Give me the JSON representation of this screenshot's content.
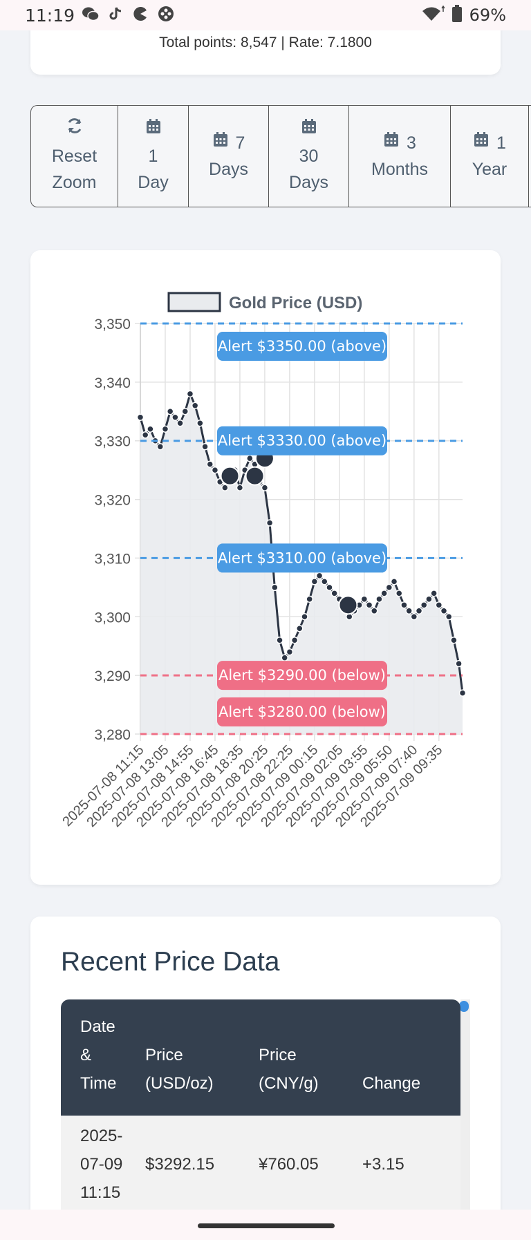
{
  "status": {
    "time": "11:19",
    "battery": "69%",
    "icons": [
      "wechat-icon",
      "tiktok-icon",
      "pacman-icon",
      "game-icon",
      "wifi-icon",
      "battery-icon"
    ]
  },
  "stats": {
    "summary": "Total points: 8,547 | Rate: 7.1800"
  },
  "range": {
    "buttons": [
      {
        "id": "reset",
        "icon": "refresh-icon",
        "line1": "Reset",
        "line2": "Zoom"
      },
      {
        "id": "1d",
        "icon": "calendar-icon",
        "line1": "1",
        "line2": "Day"
      },
      {
        "id": "7d",
        "icon": "calendar-icon",
        "line1": "7",
        "line2": "Days"
      },
      {
        "id": "30d",
        "icon": "calendar-icon",
        "line1": "30",
        "line2": "Days"
      },
      {
        "id": "3m",
        "icon": "calendar-icon",
        "line1": "3",
        "line2": "Months"
      },
      {
        "id": "1y",
        "icon": "calendar-icon",
        "line1": "1",
        "line2": "Year"
      }
    ]
  },
  "chart_data": {
    "type": "line",
    "title": "",
    "xlabel": "",
    "ylabel": "",
    "legend": [
      {
        "name": "Gold Price (USD)",
        "placement": "top-center"
      }
    ],
    "ylim": [
      3280,
      3350
    ],
    "yticks": [
      3350,
      3340,
      3330,
      3320,
      3310,
      3300,
      3290,
      3280
    ],
    "ytick_labels": [
      "3,350",
      "3,340",
      "3,330",
      "3,320",
      "3,310",
      "3,300",
      "3,290",
      "3,280"
    ],
    "xtick_labels": [
      "2025-07-08 11:15",
      "2025-07-08 13:05",
      "2025-07-08 14:55",
      "2025-07-08 16:45",
      "2025-07-08 18:35",
      "2025-07-08 20:25",
      "2025-07-08 22:25",
      "2025-07-09 00:15",
      "2025-07-09 02:05",
      "2025-07-09 03:55",
      "2025-07-09 05:50",
      "2025-07-09 07:40",
      "2025-07-09 09:35"
    ],
    "grid": true,
    "series": [
      {
        "name": "Gold Price (USD)",
        "x": [
          0,
          0.2,
          0.4,
          0.6,
          0.8,
          1.0,
          1.2,
          1.4,
          1.6,
          1.8,
          2.0,
          2.2,
          2.4,
          2.6,
          2.8,
          3.0,
          3.2,
          3.4,
          3.6,
          3.8,
          4.0,
          4.2,
          4.4,
          4.6,
          4.8,
          5.0,
          5.2,
          5.4,
          5.6,
          5.8,
          6.0,
          6.2,
          6.4,
          6.6,
          6.8,
          7.0,
          7.2,
          7.4,
          7.6,
          7.8,
          8.0,
          8.2,
          8.4,
          8.6,
          8.8,
          9.0,
          9.2,
          9.4,
          9.6,
          9.8,
          10.0,
          10.2,
          10.4,
          10.6,
          10.8,
          11.0,
          11.2,
          11.4,
          11.6,
          11.8,
          12.0,
          12.2,
          12.4,
          12.6,
          12.8,
          12.95
        ],
        "values": [
          3334,
          3331,
          3332,
          3330,
          3329,
          3332,
          3335,
          3334,
          3333,
          3335,
          3338,
          3336,
          3333,
          3329,
          3326,
          3325,
          3323,
          3322,
          3323,
          3325,
          3322,
          3325,
          3327,
          3326,
          3323,
          3322,
          3316,
          3305,
          3296,
          3293,
          3294,
          3296,
          3298,
          3300,
          3303,
          3306,
          3307,
          3306,
          3305,
          3304,
          3303,
          3302,
          3300,
          3301,
          3302,
          3303,
          3302,
          3301,
          3303,
          3304,
          3305,
          3306,
          3304,
          3302,
          3301,
          3300,
          3301,
          3302,
          3303,
          3304,
          3302,
          3301,
          3300,
          3296,
          3292,
          3287
        ]
      }
    ],
    "highlight_points": [
      {
        "x": 3.6,
        "value": 3324
      },
      {
        "x": 4.6,
        "value": 3324
      },
      {
        "x": 5.0,
        "value": 3327
      },
      {
        "x": 8.35,
        "value": 3302
      }
    ],
    "alert_lines": [
      {
        "value": 3350,
        "label": "Alert $3350.00 (above)",
        "kind": "above",
        "color": "#4a9be3"
      },
      {
        "value": 3330,
        "label": "Alert $3330.00 (above)",
        "kind": "above",
        "color": "#4a9be3"
      },
      {
        "value": 3310,
        "label": "Alert $3310.00 (above)",
        "kind": "above",
        "color": "#4a9be3"
      },
      {
        "value": 3290,
        "label": "Alert $3290.00 (below)",
        "kind": "below",
        "color": "#ef6f86"
      },
      {
        "value": 3280,
        "label": "Alert $3280.00 (below)",
        "kind": "below",
        "color": "#ef6f86"
      }
    ],
    "line_color": "#2c3544",
    "fill_color": "#e9ebee"
  },
  "recent": {
    "title": "Recent Price Data",
    "columns": [
      {
        "lines": [
          "Date",
          "&",
          "Time"
        ]
      },
      {
        "lines": [
          "Price",
          "(USD/oz)"
        ]
      },
      {
        "lines": [
          "Price",
          "(CNY/g)"
        ]
      },
      {
        "lines": [
          "Change"
        ]
      }
    ],
    "rows": [
      {
        "datetime": [
          "2025-",
          "07-09",
          "11:15"
        ],
        "usd": "$3292.15",
        "cny": "¥760.05",
        "change": "+3.15"
      }
    ]
  }
}
